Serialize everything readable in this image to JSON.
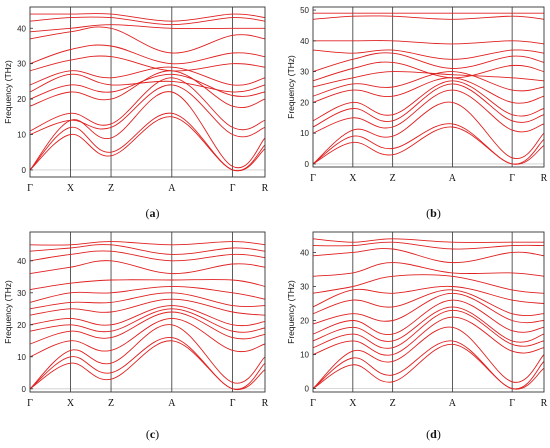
{
  "chart_data": [
    {
      "type": "line",
      "panel_label": "(a)",
      "ylabel": "Frequency (THz)",
      "ylim": [
        -2,
        46
      ],
      "yticks": [
        0,
        10,
        20,
        30,
        40
      ],
      "path": [
        "Γ",
        "X",
        "Z",
        "A",
        "Γ",
        "R"
      ],
      "path_positions": [
        0,
        1,
        2,
        3.5,
        5,
        5.8
      ],
      "grid": false,
      "line_color": "#e02020",
      "bands": [
        [
          0,
          10,
          4,
          15,
          0,
          6
        ],
        [
          0,
          12,
          5,
          16,
          0,
          7
        ],
        [
          0,
          14,
          9,
          22,
          1,
          9
        ],
        [
          10,
          14,
          12,
          24,
          10,
          12
        ],
        [
          11,
          16,
          13,
          26,
          12,
          14
        ],
        [
          18,
          22,
          20,
          28,
          18,
          20
        ],
        [
          20,
          24,
          22,
          27,
          21,
          22
        ],
        [
          22,
          27,
          24,
          25,
          22,
          24
        ],
        [
          24,
          28,
          26,
          29,
          24,
          26
        ],
        [
          28,
          31,
          32,
          28,
          30,
          29
        ],
        [
          30,
          34,
          35,
          30,
          33,
          32
        ],
        [
          37,
          39,
          40,
          33,
          38,
          37
        ],
        [
          39,
          40,
          41,
          40,
          40,
          40
        ],
        [
          42,
          43,
          43,
          41,
          43,
          42
        ],
        [
          44,
          44,
          44,
          42,
          44,
          43
        ]
      ]
    },
    {
      "type": "line",
      "panel_label": "(b)",
      "ylabel": "Frequency (THz)",
      "ylim": [
        -1,
        51
      ],
      "yticks": [
        0,
        10,
        20,
        30,
        40,
        50
      ],
      "path": [
        "Γ",
        "X",
        "Z",
        "A",
        "Γ",
        "R"
      ],
      "path_positions": [
        0,
        1,
        2,
        3.5,
        5,
        5.8
      ],
      "grid": false,
      "line_color": "#e02020",
      "bands": [
        [
          0,
          7,
          3,
          12,
          0,
          6
        ],
        [
          0,
          9,
          5,
          13,
          0,
          8
        ],
        [
          0,
          11,
          9,
          20,
          2,
          10
        ],
        [
          10,
          15,
          12,
          24,
          11,
          13
        ],
        [
          12,
          18,
          14,
          26,
          14,
          16
        ],
        [
          14,
          20,
          16,
          27,
          16,
          18
        ],
        [
          20,
          24,
          22,
          28,
          20,
          22
        ],
        [
          22,
          26,
          25,
          30,
          24,
          25
        ],
        [
          25,
          28,
          30,
          29,
          28,
          27
        ],
        [
          27,
          31,
          33,
          28,
          32,
          30
        ],
        [
          30,
          34,
          36,
          31,
          35,
          33
        ],
        [
          37,
          36,
          37,
          34,
          37,
          36
        ],
        [
          40,
          40,
          40,
          39,
          40,
          39
        ],
        [
          47,
          48,
          48,
          47,
          48,
          47
        ],
        [
          49,
          49,
          49,
          49,
          49,
          49
        ]
      ]
    },
    {
      "type": "line",
      "panel_label": "(c)",
      "ylabel": "Frequency (THz)",
      "ylim": [
        -1,
        49
      ],
      "yticks": [
        0,
        10,
        20,
        30,
        40
      ],
      "path": [
        "Γ",
        "X",
        "Z",
        "A",
        "Γ",
        "R"
      ],
      "path_positions": [
        0,
        1,
        2,
        3.5,
        5,
        5.8
      ],
      "grid": false,
      "line_color": "#e02020",
      "bands": [
        [
          0,
          8,
          3,
          15,
          0,
          6
        ],
        [
          0,
          10,
          5,
          16,
          0,
          8
        ],
        [
          0,
          12,
          8,
          20,
          2,
          10
        ],
        [
          10,
          15,
          12,
          22,
          12,
          14
        ],
        [
          14,
          18,
          16,
          24,
          16,
          17
        ],
        [
          18,
          20,
          18,
          25,
          18,
          19
        ],
        [
          20,
          22,
          20,
          26,
          20,
          21
        ],
        [
          23,
          25,
          24,
          28,
          24,
          23
        ],
        [
          25,
          27,
          27,
          30,
          26,
          26
        ],
        [
          27,
          30,
          30,
          32,
          30,
          28
        ],
        [
          31,
          33,
          34,
          34,
          34,
          32
        ],
        [
          36,
          38,
          40,
          36,
          39,
          38
        ],
        [
          40,
          42,
          43,
          40,
          42,
          41
        ],
        [
          43,
          44,
          45,
          42,
          44,
          43
        ],
        [
          45,
          45,
          46,
          45,
          46,
          45
        ]
      ]
    },
    {
      "type": "line",
      "panel_label": "(d)",
      "ylabel": "Frequency (THz)",
      "ylim": [
        -1,
        46
      ],
      "yticks": [
        0,
        10,
        20,
        30,
        40
      ],
      "path": [
        "Γ",
        "X",
        "Z",
        "A",
        "Γ",
        "R"
      ],
      "path_positions": [
        0,
        1,
        2,
        3.5,
        5,
        5.8
      ],
      "grid": false,
      "line_color": "#e02020",
      "bands": [
        [
          0,
          7,
          2,
          13,
          0,
          6
        ],
        [
          0,
          9,
          4,
          14,
          0,
          8
        ],
        [
          0,
          11,
          8,
          18,
          2,
          10
        ],
        [
          10,
          14,
          10,
          21,
          11,
          12
        ],
        [
          12,
          16,
          12,
          23,
          13,
          14
        ],
        [
          14,
          18,
          14,
          24,
          14,
          16
        ],
        [
          16,
          20,
          16,
          26,
          17,
          18
        ],
        [
          19,
          22,
          20,
          28,
          20,
          20
        ],
        [
          22,
          26,
          24,
          29,
          22,
          22
        ],
        [
          24,
          29,
          28,
          30,
          26,
          25
        ],
        [
          28,
          30,
          33,
          33,
          29,
          28
        ],
        [
          33,
          34,
          37,
          34,
          34,
          33
        ],
        [
          39,
          40,
          41,
          37,
          40,
          39
        ],
        [
          42,
          42,
          43,
          41,
          42,
          42
        ],
        [
          44,
          43,
          44,
          43,
          43,
          43
        ]
      ]
    }
  ]
}
